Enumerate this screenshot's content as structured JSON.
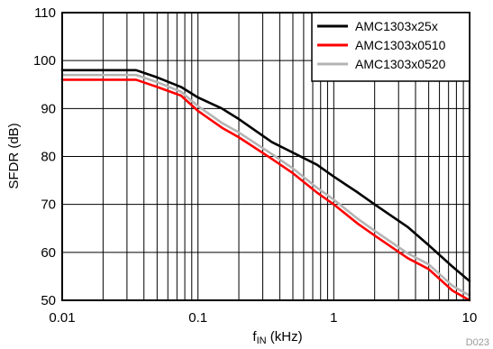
{
  "chart_data": {
    "type": "line",
    "xlabel": {
      "main": "f",
      "sub": "IN",
      "unit": " (kHz)"
    },
    "ylabel": "SFDR (dB)",
    "xscale": "log",
    "xlim": [
      0.01,
      10
    ],
    "ylim": [
      50,
      110
    ],
    "grid": true,
    "legend_position": "top-right",
    "x_ticks": [
      {
        "value": 0.01,
        "label": "0.01"
      },
      {
        "value": 0.1,
        "label": "0.1"
      },
      {
        "value": 1,
        "label": "1"
      },
      {
        "value": 10,
        "label": "10"
      }
    ],
    "y_ticks": [
      {
        "value": 50,
        "label": "50"
      },
      {
        "value": 60,
        "label": "60"
      },
      {
        "value": 70,
        "label": "70"
      },
      {
        "value": 80,
        "label": "80"
      },
      {
        "value": 90,
        "label": "90"
      },
      {
        "value": 100,
        "label": "100"
      },
      {
        "value": 110,
        "label": "110"
      }
    ],
    "series": [
      {
        "name": "AMC1303x25x",
        "color": "#000000",
        "points": [
          [
            0.01,
            98.0
          ],
          [
            0.035,
            98.0
          ],
          [
            0.05,
            96.5
          ],
          [
            0.075,
            94.5
          ],
          [
            0.1,
            92.3
          ],
          [
            0.15,
            90.0
          ],
          [
            0.2,
            87.8
          ],
          [
            0.35,
            83.0
          ],
          [
            0.5,
            80.8
          ],
          [
            0.75,
            78.3
          ],
          [
            1.0,
            75.8
          ],
          [
            1.5,
            72.5
          ],
          [
            2.0,
            70.0
          ],
          [
            3.5,
            65.3
          ],
          [
            5.0,
            61.5
          ],
          [
            7.5,
            57.0
          ],
          [
            10.0,
            54.0
          ]
        ]
      },
      {
        "name": "AMC1303x0510",
        "color": "#ff0000",
        "points": [
          [
            0.01,
            96.0
          ],
          [
            0.035,
            96.0
          ],
          [
            0.05,
            94.5
          ],
          [
            0.075,
            92.7
          ],
          [
            0.1,
            89.5
          ],
          [
            0.15,
            86.0
          ],
          [
            0.2,
            84.0
          ],
          [
            0.35,
            79.5
          ],
          [
            0.5,
            76.5
          ],
          [
            0.75,
            72.5
          ],
          [
            1.0,
            70.0
          ],
          [
            1.5,
            66.0
          ],
          [
            2.0,
            63.5
          ],
          [
            3.5,
            58.8
          ],
          [
            5.0,
            56.5
          ],
          [
            7.5,
            52.0
          ],
          [
            10.0,
            50.0
          ]
        ]
      },
      {
        "name": "AMC1303x0520",
        "color": "#b4b4b4",
        "points": [
          [
            0.01,
            97.0
          ],
          [
            0.035,
            97.0
          ],
          [
            0.05,
            95.5
          ],
          [
            0.075,
            93.5
          ],
          [
            0.1,
            90.5
          ],
          [
            0.15,
            87.0
          ],
          [
            0.2,
            85.0
          ],
          [
            0.35,
            80.5
          ],
          [
            0.5,
            77.5
          ],
          [
            0.75,
            73.5
          ],
          [
            1.0,
            71.0
          ],
          [
            1.5,
            67.0
          ],
          [
            2.0,
            64.5
          ],
          [
            3.5,
            59.8
          ],
          [
            5.0,
            57.5
          ],
          [
            7.5,
            53.0
          ],
          [
            10.0,
            51.0
          ]
        ]
      }
    ],
    "watermark": "D023"
  }
}
